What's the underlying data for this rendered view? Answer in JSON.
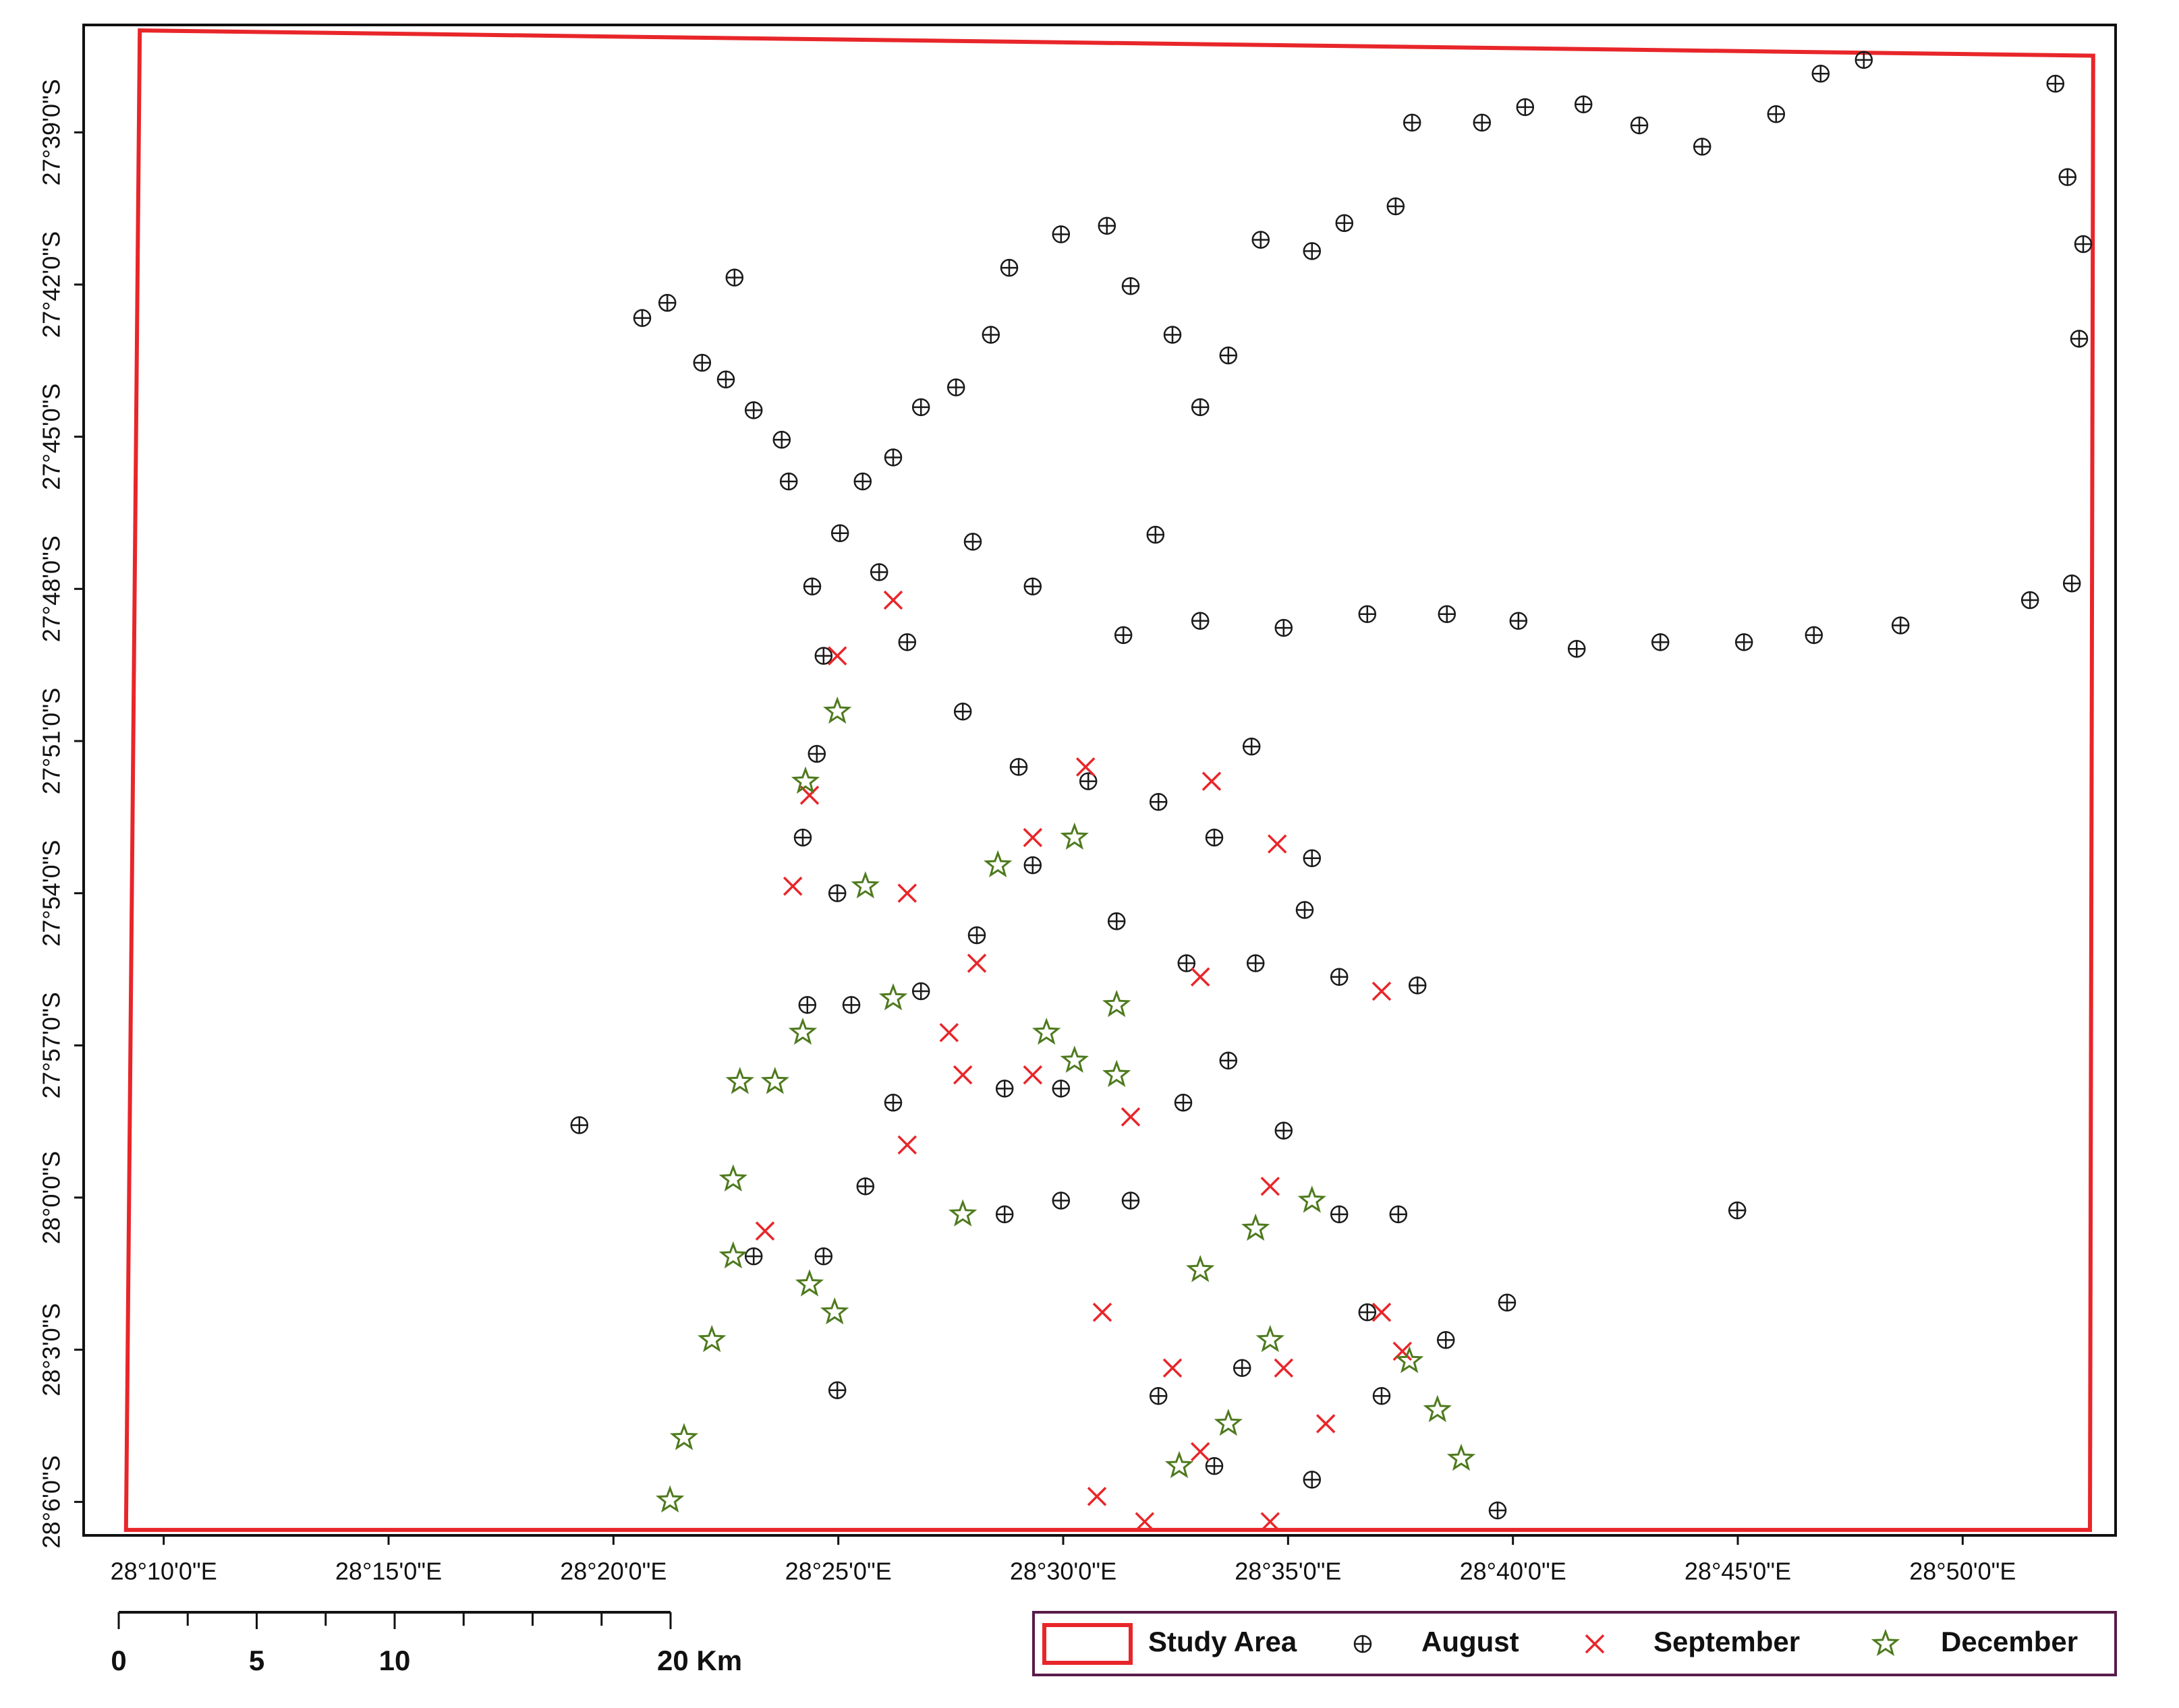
{
  "chart_data": {
    "type": "scatter",
    "xlim": [
      28.137,
      28.89
    ],
    "ylim": [
      -28.111,
      -27.6147
    ],
    "xticks": [
      {
        "value": 28.166667,
        "label": "28°10'0\"E"
      },
      {
        "value": 28.25,
        "label": "28°15'0\"E"
      },
      {
        "value": 28.333333,
        "label": "28°20'0\"E"
      },
      {
        "value": 28.416667,
        "label": "28°25'0\"E"
      },
      {
        "value": 28.5,
        "label": "28°30'0\"E"
      },
      {
        "value": 28.583333,
        "label": "28°35'0\"E"
      },
      {
        "value": 28.666667,
        "label": "28°40'0\"E"
      },
      {
        "value": 28.75,
        "label": "28°45'0\"E"
      },
      {
        "value": 28.833333,
        "label": "28°50'0\"E"
      }
    ],
    "yticks": [
      {
        "value": -27.65,
        "label": "27°39'0\"S"
      },
      {
        "value": -27.7,
        "label": "27°42'0\"S"
      },
      {
        "value": -27.75,
        "label": "27°45'0\"S"
      },
      {
        "value": -27.8,
        "label": "27°48'0\"S"
      },
      {
        "value": -27.85,
        "label": "27°51'0\"S"
      },
      {
        "value": -27.9,
        "label": "27°54'0\"S"
      },
      {
        "value": -27.95,
        "label": "27°57'0\"S"
      },
      {
        "value": -28.0,
        "label": "28°0'0\"S"
      },
      {
        "value": -28.05,
        "label": "28°3'0\"S"
      },
      {
        "value": -28.1,
        "label": "28°6'0\"S"
      }
    ],
    "study_area": {
      "name": "Study Area",
      "color": "#e8262a",
      "x": [
        28.1578,
        28.8817,
        28.8805,
        28.1527
      ],
      "y": [
        -27.6165,
        -27.6248,
        -28.1092,
        -28.1092
      ]
    },
    "series": [
      {
        "name": "August",
        "color": "#1a1a1a",
        "marker": "circle-plus",
        "x": [
          28.3207,
          28.3533,
          28.344,
          28.3782,
          28.3662,
          28.375,
          28.3853,
          28.3957,
          28.3983,
          28.4173,
          28.4257,
          28.437,
          28.4473,
          28.4603,
          28.4732,
          28.48,
          28.4992,
          28.5162,
          28.525,
          28.5405,
          28.5508,
          28.5612,
          28.5732,
          28.5922,
          28.6042,
          28.6232,
          28.6293,
          28.6552,
          28.6712,
          28.6928,
          28.7135,
          28.7368,
          28.7642,
          28.7807,
          28.7967,
          28.8677,
          28.8722,
          28.878,
          28.8765,
          28.8583,
          28.8738,
          28.8103,
          28.7782,
          28.7523,
          28.7213,
          28.6903,
          28.6687,
          28.6422,
          28.6127,
          28.5817,
          28.5508,
          28.5223,
          28.4887,
          28.4665,
          28.4318,
          28.407,
          28.5698,
          28.7498,
          28.6645,
          28.661,
          28.4163,
          28.5445,
          28.6242,
          28.6418,
          28.6313,
          28.5895,
          28.5342,
          28.4112,
          28.4087,
          28.4035,
          28.4163,
          28.4422,
          28.4628,
          28.4835,
          28.5093,
          28.5353,
          28.556,
          28.5922,
          28.4887,
          28.468,
          28.4473,
          28.437,
          28.4267,
          28.4112,
          28.3853,
          28.5198,
          28.5457,
          28.5612,
          28.5817,
          28.6023,
          28.6127,
          28.618,
          28.5922,
          28.4783,
          28.4992,
          28.525,
          28.4992,
          28.4783,
          28.5713,
          28.6023,
          28.4215,
          28.5353,
          28.556,
          28.5663,
          28.4052
        ],
        "y": [
          -27.9762,
          -27.706,
          -27.711,
          -27.6977,
          -27.7257,
          -27.7312,
          -27.7413,
          -27.751,
          -27.7647,
          -27.7817,
          -27.7647,
          -27.7568,
          -27.7403,
          -27.7338,
          -27.7165,
          -27.6945,
          -27.6835,
          -27.6807,
          -27.7005,
          -27.7165,
          -27.7403,
          -27.7233,
          -27.6853,
          -27.689,
          -27.6798,
          -27.6743,
          -27.6468,
          -27.6468,
          -27.6417,
          -27.6408,
          -27.6477,
          -27.6547,
          -27.644,
          -27.6307,
          -27.6262,
          -27.634,
          -27.6647,
          -27.6867,
          -27.7178,
          -27.8037,
          -27.7982,
          -27.812,
          -27.8152,
          -27.8175,
          -27.8175,
          -27.8197,
          -27.8105,
          -27.8083,
          -27.8083,
          -27.8128,
          -27.8105,
          -27.8152,
          -27.7992,
          -27.7845,
          -27.7945,
          -27.7992,
          -27.8518,
          -28.0042,
          -28.0345,
          -28.1028,
          -28.0633,
          -27.9688,
          -28.0055,
          -28.0468,
          -27.9303,
          -27.9055,
          -27.7822,
          -27.822,
          -27.8542,
          -27.8817,
          -27.9,
          -27.8175,
          -27.8403,
          -27.8585,
          -27.8632,
          -27.87,
          -27.8817,
          -27.8885,
          -27.8908,
          -27.9138,
          -27.9322,
          -27.9688,
          -27.9963,
          -28.0193,
          -28.0193,
          -27.9092,
          -27.923,
          -27.955,
          -27.978,
          -28.0055,
          -28.0377,
          -28.0652,
          -28.0927,
          -28.0055,
          -28.001,
          -28.001,
          -27.9642,
          -27.9642,
          -27.923,
          -27.9275,
          -27.9367,
          -28.0652,
          -28.0882,
          -28.056,
          -27.9367
        ]
      },
      {
        "name": "September",
        "color": "#e8262a",
        "marker": "x",
        "x": [
          28.437,
          28.4163,
          28.406,
          28.3998,
          28.4422,
          28.468,
          28.4887,
          28.5083,
          28.555,
          28.5793,
          28.4577,
          28.4422,
          28.4628,
          28.4887,
          28.525,
          28.5145,
          28.5405,
          28.5508,
          28.5125,
          28.5302,
          28.5817,
          28.5973,
          28.618,
          28.6257,
          28.5767,
          28.3895,
          28.5508,
          28.618,
          28.5767
        ],
        "y": [
          -27.8037,
          -27.822,
          -27.8678,
          -27.8977,
          -27.9,
          -27.923,
          -27.8817,
          -27.8585,
          -27.8632,
          -27.8838,
          -27.9458,
          -27.9827,
          -27.9597,
          -27.9597,
          -27.9735,
          -28.0377,
          -28.056,
          -28.0835,
          -28.0982,
          -28.1065,
          -28.056,
          -28.0743,
          -28.0377,
          -28.0505,
          -27.9963,
          -28.011,
          -27.9275,
          -27.9322,
          -28.1065
        ]
      },
      {
        "name": "December",
        "color": "#4e7a1e",
        "marker": "star",
        "x": [
          28.3543,
          28.3595,
          28.3698,
          28.3777,
          28.3777,
          28.3802,
          28.3932,
          28.4153,
          28.406,
          28.4035,
          28.437,
          28.4163,
          28.4045,
          28.4267,
          28.4758,
          28.5042,
          28.5042,
          28.5198,
          28.4938,
          28.5198,
          28.4628,
          28.5508,
          28.5713,
          28.5767,
          28.5612,
          28.543,
          28.6283,
          28.6387,
          28.6475,
          28.5922
        ],
        "y": [
          -28.0995,
          -28.079,
          -28.0468,
          -28.0193,
          -27.994,
          -27.962,
          -27.962,
          -28.0377,
          -28.0285,
          -27.9458,
          -27.9345,
          -27.8403,
          -27.8633,
          -27.8977,
          -27.8908,
          -27.8817,
          -27.955,
          -27.9367,
          -27.9458,
          -27.9597,
          -28.0055,
          -28.0238,
          -28.0102,
          -28.0468,
          -28.0743,
          -28.0882,
          -28.0537,
          -28.0698,
          -28.0858,
          -28.001
        ]
      }
    ],
    "scale_bar": {
      "ticks": [
        0,
        5,
        10,
        {
          "value": 20,
          "label": "20 Km"
        }
      ]
    }
  }
}
